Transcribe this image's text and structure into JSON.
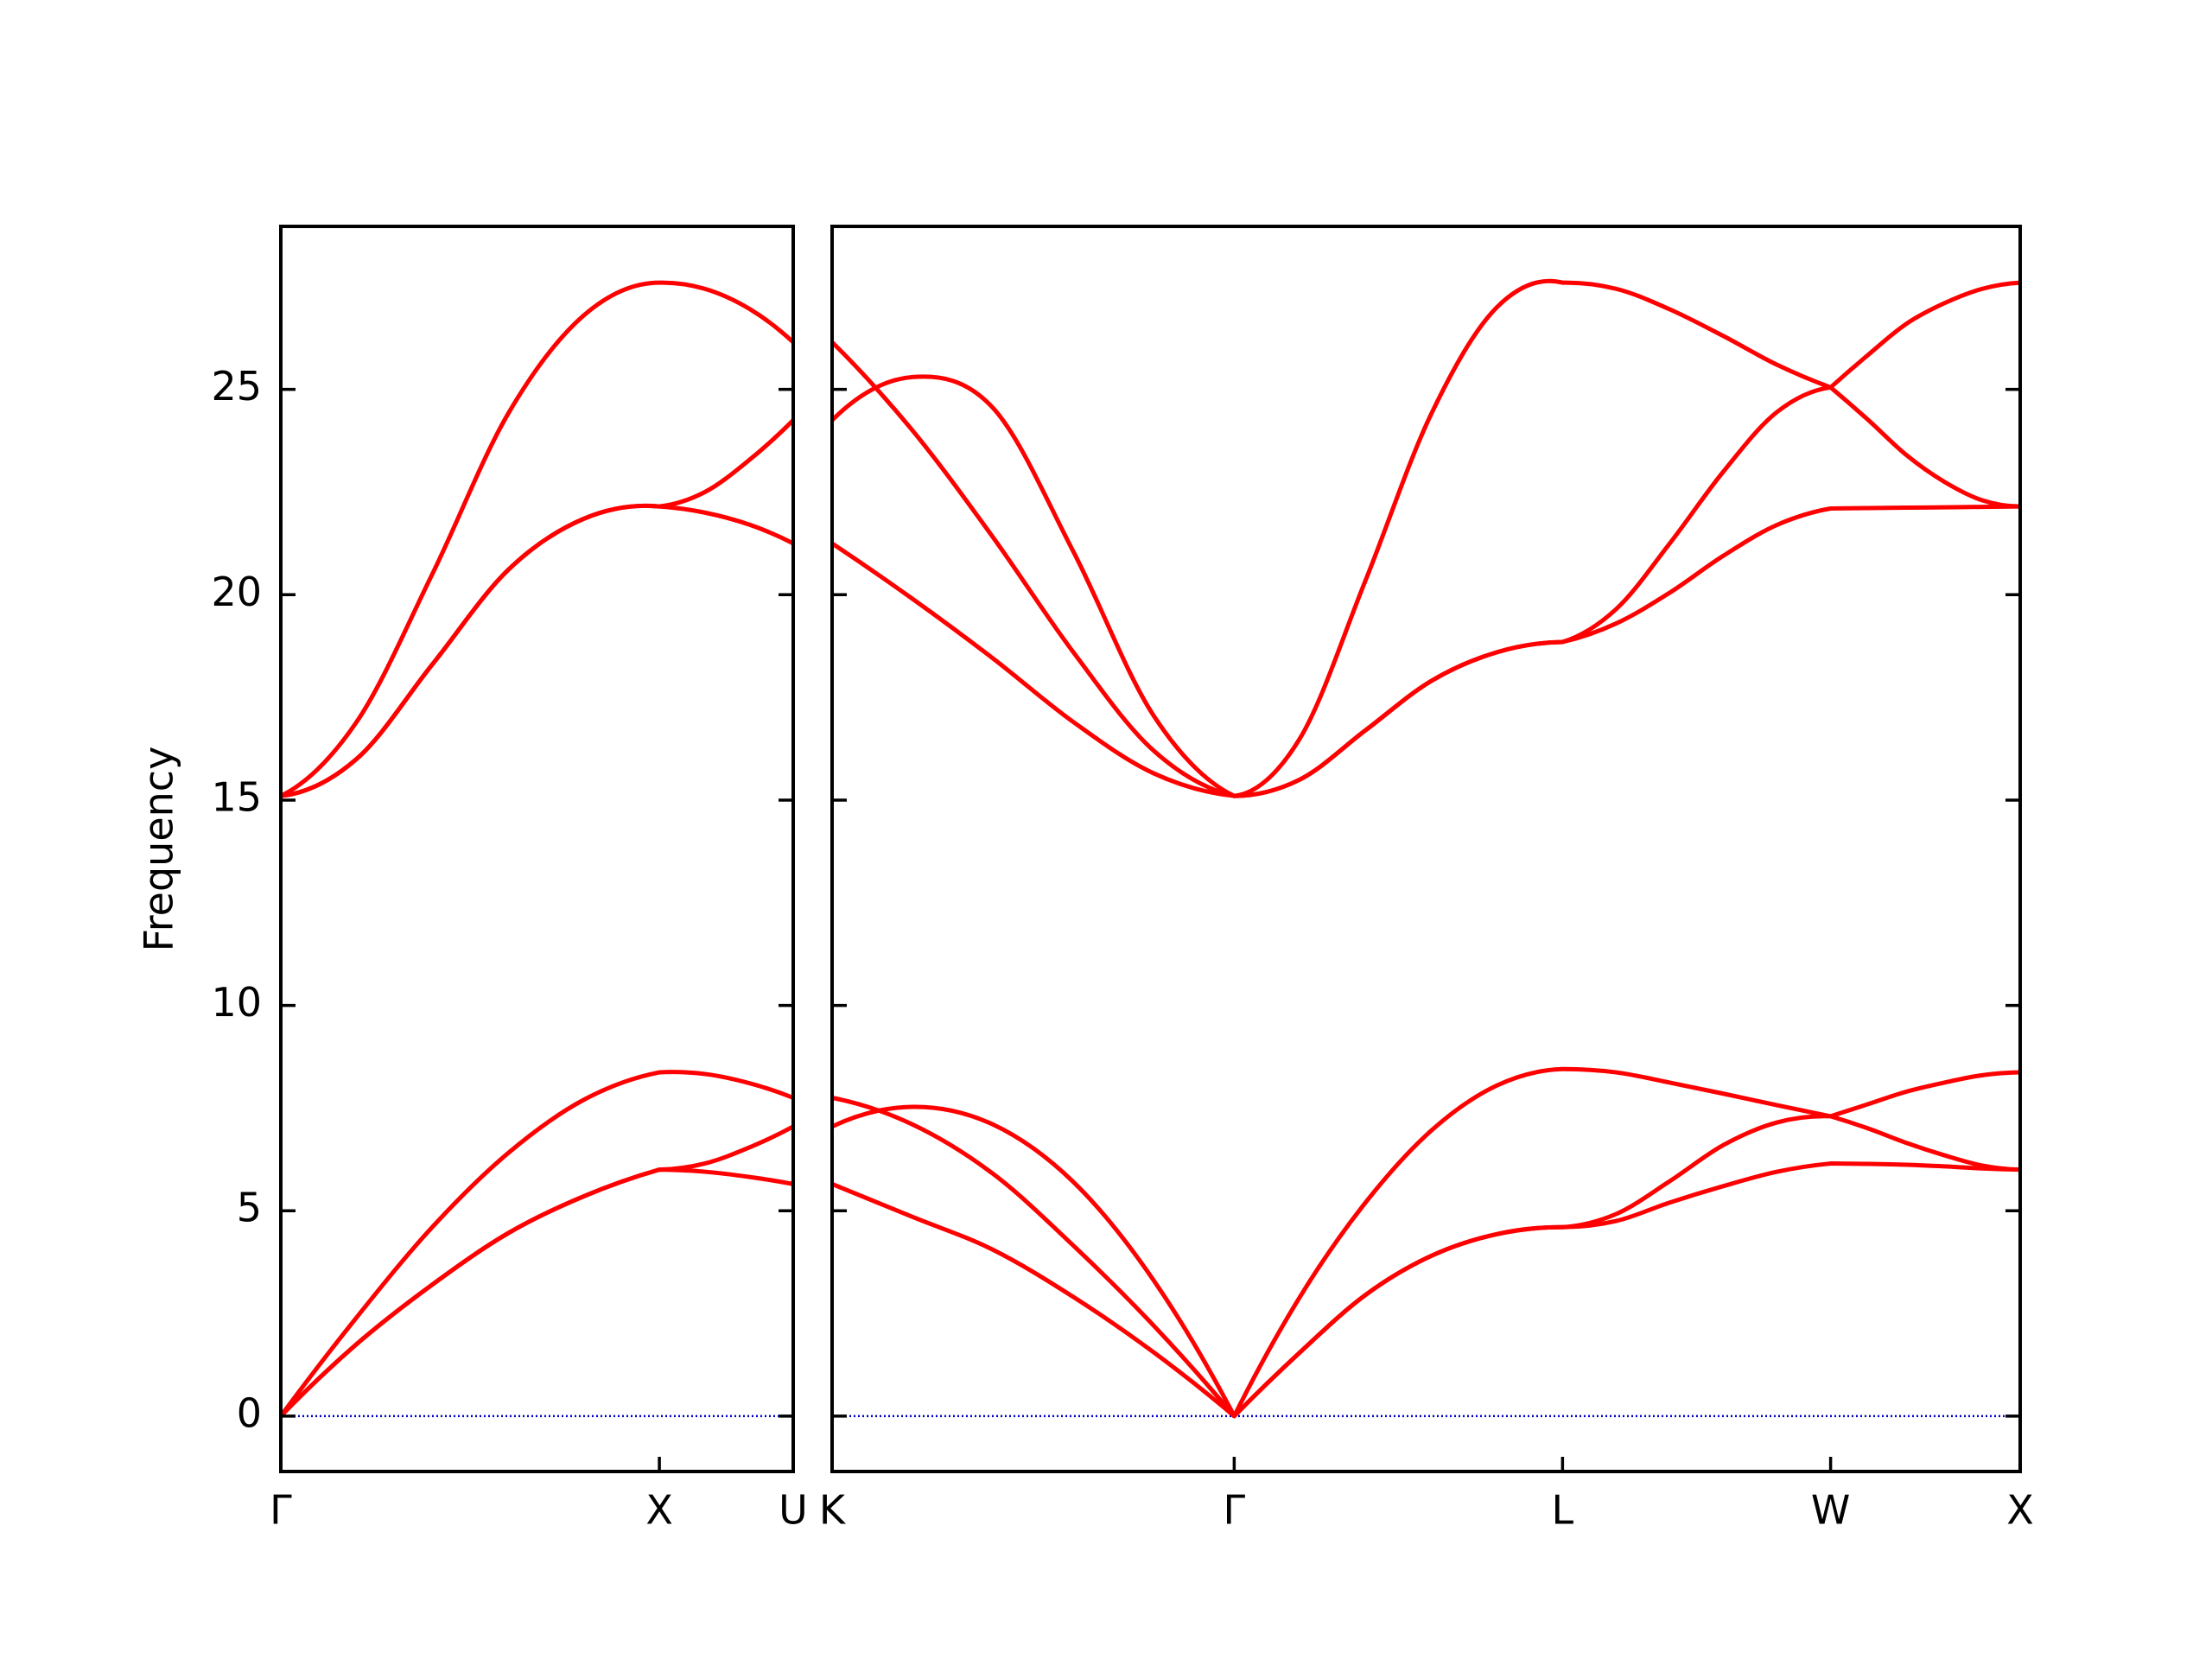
{
  "chart_data": [
    {
      "type": "line",
      "ylabel": "Frequency",
      "x": [
        0,
        0.2,
        0.4,
        0.6,
        0.8,
        1,
        1.12,
        1.24,
        1.3536
      ],
      "xlim": [
        0,
        1.3536
      ],
      "xticks": [
        {
          "value": 0,
          "label": "Γ"
        },
        {
          "value": 1,
          "label": "X"
        },
        {
          "value": 1.3536,
          "label": "U"
        }
      ],
      "ylim": [
        -1.35,
        28.97
      ],
      "yticks": [
        0,
        5,
        10,
        15,
        20,
        25
      ],
      "hline": 0,
      "hline_color": "#0000cc",
      "series": [
        {
          "color": "#ff0000",
          "values": [
            0,
            2.4,
            4.6,
            6.4,
            7.7,
            8.37,
            8.33,
            8.1,
            7.75
          ]
        },
        {
          "color": "#ff0000",
          "values": [
            0,
            1.75,
            3.2,
            4.45,
            5.35,
            6.0,
            6.15,
            6.55,
            7.05
          ]
        },
        {
          "color": "#ff0000",
          "values": [
            0,
            1.75,
            3.2,
            4.45,
            5.35,
            6.0,
            5.95,
            5.82,
            5.65
          ]
        },
        {
          "color": "#ff0000",
          "values": [
            15.1,
            16.9,
            20.5,
            24.4,
            26.8,
            27.6,
            27.45,
            26.95,
            26.15
          ]
        },
        {
          "color": "#ff0000",
          "values": [
            15.1,
            16.0,
            18.3,
            20.6,
            21.85,
            22.15,
            22.5,
            23.3,
            24.25
          ]
        },
        {
          "color": "#ff0000",
          "values": [
            15.1,
            16.0,
            18.3,
            20.6,
            21.85,
            22.15,
            22.0,
            21.7,
            21.25
          ]
        }
      ]
    },
    {
      "type": "line",
      "x": [
        1.3536,
        1.5657,
        1.7779,
        1.99,
        2.2021,
        2.4142,
        2.5874,
        2.7606,
        2.9338,
        3.107,
        3.2802,
        3.4216,
        3.563,
        3.7045,
        3.8459,
        3.9873,
        4.0873,
        4.1873,
        4.2873,
        4.3873,
        4.4873
      ],
      "xlim": [
        1.3536,
        4.4873
      ],
      "xticks": [
        {
          "value": 1.3536,
          "label": "K"
        },
        {
          "value": 2.4142,
          "label": "Γ"
        },
        {
          "value": 3.2802,
          "label": "L"
        },
        {
          "value": 3.9873,
          "label": "W"
        },
        {
          "value": 4.4873,
          "label": "X"
        }
      ],
      "ylim": [
        -1.35,
        28.97
      ],
      "yticks": [
        0,
        5,
        10,
        15,
        20,
        25
      ],
      "show_ytick_labels": false,
      "hline": 0,
      "hline_color": "#0000cc",
      "series": [
        {
          "color": "#ff0000",
          "values": [
            7.75,
            7.1,
            5.9,
            4.15,
            2.2,
            0,
            2.9,
            5.2,
            6.95,
            8.05,
            8.45,
            8.37,
            8.12,
            7.85,
            7.57,
            7.3,
            7.6,
            7.9,
            8.12,
            8.3,
            8.37
          ]
        },
        {
          "color": "#ff0000",
          "values": [
            7.05,
            7.53,
            7.1,
            5.7,
            3.3,
            0,
            1.55,
            2.95,
            3.9,
            4.43,
            4.6,
            4.92,
            5.72,
            6.6,
            7.15,
            7.3,
            7.0,
            6.65,
            6.35,
            6.1,
            6.0
          ]
        },
        {
          "color": "#ff0000",
          "values": [
            5.65,
            4.85,
            4.05,
            2.9,
            1.55,
            0,
            1.55,
            2.95,
            3.9,
            4.43,
            4.6,
            4.75,
            5.2,
            5.6,
            5.95,
            6.15,
            6.14,
            6.12,
            6.08,
            6.03,
            6.0
          ]
        },
        {
          "color": "#ff0000",
          "values": [
            26.15,
            24.0,
            21.4,
            18.6,
            16.2,
            15.1,
            16.5,
            20.35,
            24.4,
            27.0,
            27.6,
            27.45,
            26.95,
            26.3,
            25.6,
            25.05,
            25.85,
            26.6,
            27.1,
            27.45,
            27.6
          ]
        },
        {
          "color": "#ff0000",
          "values": [
            24.25,
            25.3,
            24.55,
            21.05,
            17.05,
            15.1,
            15.5,
            16.7,
            17.9,
            18.6,
            18.85,
            19.65,
            21.25,
            23.0,
            24.45,
            25.05,
            24.25,
            23.4,
            22.75,
            22.3,
            22.15
          ]
        },
        {
          "color": "#ff0000",
          "values": [
            21.25,
            19.9,
            18.45,
            16.9,
            15.65,
            15.1,
            15.5,
            16.7,
            17.9,
            18.6,
            18.85,
            19.3,
            20.05,
            20.95,
            21.7,
            22.1,
            22.11,
            22.12,
            22.13,
            22.14,
            22.15
          ]
        }
      ]
    }
  ]
}
